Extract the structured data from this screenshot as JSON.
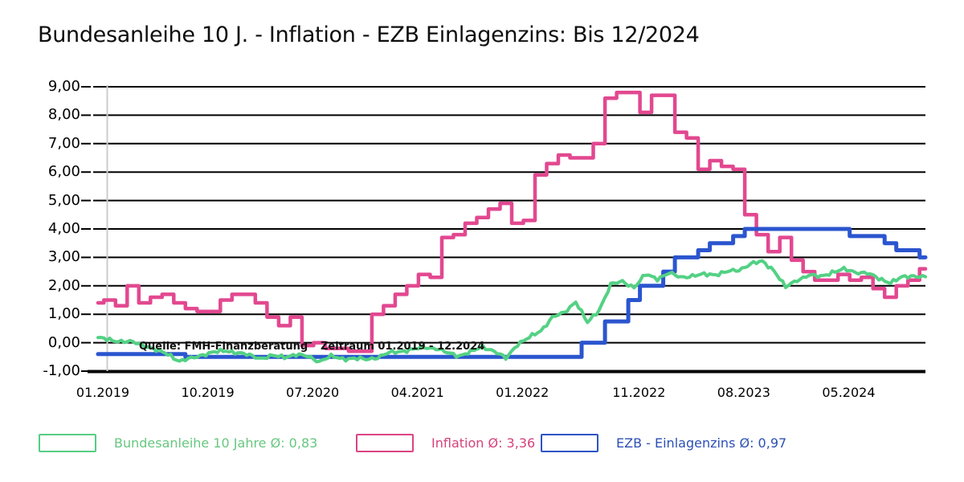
{
  "title": "Bundesanleihe 10 J. - Inflation - EZB Einlagenzins: Bis 12/2024",
  "annotation": {
    "source": "Quelle: FMH-Finanzberatung",
    "period": "Zeitraum 01.2019 - 12.2024"
  },
  "legend": {
    "items": [
      {
        "label": "Bundesanleihe 10 Jahre Ø: 0,83",
        "box_color": "#56cd83",
        "text_color": "#67c77f"
      },
      {
        "label": "Inflation Ø: 3,36",
        "box_color": "#da4483",
        "text_color": "#d5417b"
      },
      {
        "label": "EZB - Einlagenzins Ø: 0,97",
        "box_color": "#2c55c4",
        "text_color": "#2d50b4"
      }
    ]
  },
  "chart_data": {
    "type": "line",
    "title": "Bundesanleihe 10 J. - Inflation - EZB Einlagenzins: Bis 12/2024",
    "x_start": "01.2019",
    "x_end": "12.2024",
    "points_per_series": 72,
    "x_unit": "month",
    "ylim": [
      -1,
      9
    ],
    "grid": "horizontal-black",
    "legend_position": "bottom",
    "y_ticks": [
      {
        "v": 9,
        "label": "9,00"
      },
      {
        "v": 8,
        "label": "8,00"
      },
      {
        "v": 7,
        "label": "7,00"
      },
      {
        "v": 6,
        "label": "6,00"
      },
      {
        "v": 5,
        "label": "5,00"
      },
      {
        "v": 4,
        "label": "4,00"
      },
      {
        "v": 3,
        "label": "3,00"
      },
      {
        "v": 2,
        "label": "2,00"
      },
      {
        "v": 1,
        "label": "1,00"
      },
      {
        "v": 0,
        "label": "0,00"
      },
      {
        "v": -1,
        "label": "-1,00"
      }
    ],
    "x_ticks": [
      {
        "i": 0,
        "label": "01.2019"
      },
      {
        "i": 9,
        "label": "10.2019"
      },
      {
        "i": 18,
        "label": "07.2020"
      },
      {
        "i": 27,
        "label": "04.2021"
      },
      {
        "i": 36,
        "label": "01.2022"
      },
      {
        "i": 46,
        "label": "11.2022"
      },
      {
        "i": 55,
        "label": "08.2023"
      },
      {
        "i": 64,
        "label": "05.2024"
      }
    ],
    "series": [
      {
        "name": "Inflation",
        "average": "3,36",
        "color": "#e24890",
        "style": "step",
        "width": 4.5,
        "values": [
          1.4,
          1.5,
          1.3,
          2.0,
          1.4,
          1.6,
          1.7,
          1.4,
          1.2,
          1.1,
          1.1,
          1.5,
          1.7,
          1.7,
          1.4,
          0.9,
          0.6,
          0.9,
          -0.1,
          0.0,
          -0.2,
          -0.2,
          -0.3,
          -0.3,
          1.0,
          1.3,
          1.7,
          2.0,
          2.4,
          2.3,
          3.7,
          3.8,
          4.2,
          4.4,
          4.7,
          4.9,
          4.2,
          4.3,
          5.9,
          6.3,
          6.6,
          6.5,
          6.5,
          7.0,
          8.6,
          8.8,
          8.8,
          8.1,
          8.7,
          8.7,
          7.4,
          7.2,
          6.1,
          6.4,
          6.2,
          6.1,
          4.5,
          3.8,
          3.2,
          3.7,
          2.9,
          2.5,
          2.2,
          2.2,
          2.4,
          2.2,
          2.3,
          1.9,
          1.6,
          2.0,
          2.2,
          2.6
        ]
      },
      {
        "name": "EZB - Einlagenzins",
        "average": "0,97",
        "color": "#2b55cf",
        "style": "step",
        "width": 5,
        "values": [
          -0.4,
          -0.4,
          -0.4,
          -0.4,
          -0.4,
          -0.4,
          -0.4,
          -0.4,
          -0.5,
          -0.5,
          -0.5,
          -0.5,
          -0.5,
          -0.5,
          -0.5,
          -0.5,
          -0.5,
          -0.5,
          -0.5,
          -0.5,
          -0.5,
          -0.5,
          -0.5,
          -0.5,
          -0.5,
          -0.5,
          -0.5,
          -0.5,
          -0.5,
          -0.5,
          -0.5,
          -0.5,
          -0.5,
          -0.5,
          -0.5,
          -0.5,
          -0.5,
          -0.5,
          -0.5,
          -0.5,
          -0.5,
          -0.5,
          0.0,
          0.0,
          0.75,
          0.75,
          1.5,
          2.0,
          2.0,
          2.5,
          3.0,
          3.0,
          3.25,
          3.5,
          3.5,
          3.75,
          4.0,
          4.0,
          4.0,
          4.0,
          4.0,
          4.0,
          4.0,
          4.0,
          4.0,
          3.75,
          3.75,
          3.75,
          3.5,
          3.25,
          3.25,
          3.0
        ]
      },
      {
        "name": "Bundesanleihe 10 Jahre",
        "average": "0,83",
        "color": "#53d184",
        "style": "jagged",
        "width": 4,
        "values": [
          0.18,
          0.1,
          0.05,
          0.02,
          -0.1,
          -0.26,
          -0.4,
          -0.65,
          -0.55,
          -0.42,
          -0.33,
          -0.28,
          -0.36,
          -0.44,
          -0.55,
          -0.46,
          -0.5,
          -0.42,
          -0.48,
          -0.66,
          -0.48,
          -0.56,
          -0.56,
          -0.58,
          -0.52,
          -0.35,
          -0.3,
          -0.24,
          -0.16,
          -0.2,
          -0.36,
          -0.46,
          -0.32,
          -0.14,
          -0.3,
          -0.55,
          -0.05,
          0.18,
          0.42,
          0.9,
          1.05,
          1.45,
          0.7,
          1.15,
          2.05,
          2.15,
          1.95,
          2.4,
          2.25,
          2.45,
          2.3,
          2.35,
          2.4,
          2.4,
          2.5,
          2.55,
          2.78,
          2.85,
          2.55,
          1.95,
          2.2,
          2.38,
          2.32,
          2.48,
          2.58,
          2.48,
          2.45,
          2.25,
          2.12,
          2.3,
          2.35,
          2.32
        ]
      }
    ]
  }
}
